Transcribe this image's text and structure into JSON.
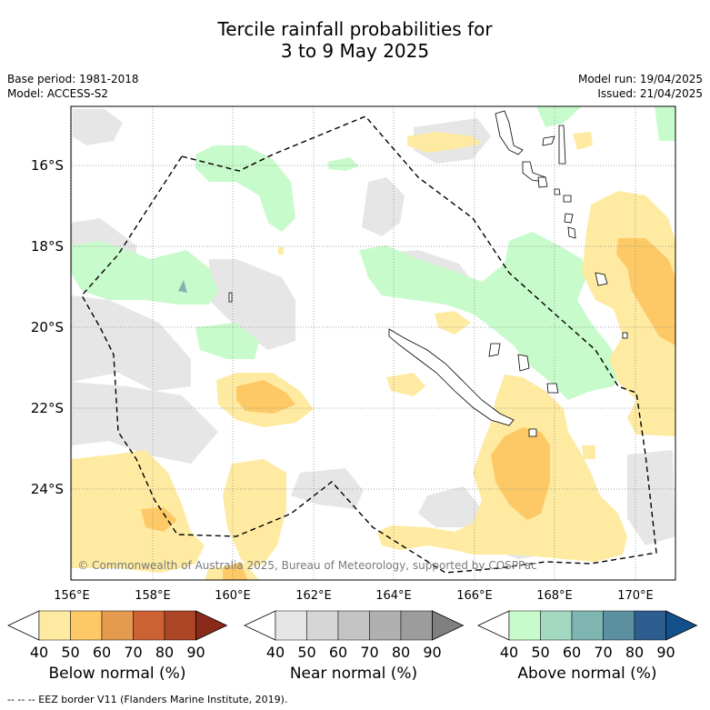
{
  "title_line1": "Tercile rainfall probabilities for",
  "title_line2": "3 to 9 May 2025",
  "base_period": "Base period: 1981-2018",
  "model": "Model: ACCESS-S2",
  "model_run": "Model run: 19/04/2025",
  "issued": "Issued: 21/04/2025",
  "copyright": "© Commonwealth of Australia 2025, Bureau of Meteorology, supported by COSPPac",
  "lat_labels": [
    "16°S",
    "18°S",
    "20°S",
    "22°S",
    "24°S"
  ],
  "lon_labels": [
    "156°E",
    "158°E",
    "160°E",
    "162°E",
    "164°E",
    "166°E",
    "168°E",
    "170°E"
  ],
  "legends": [
    {
      "name": "Below normal (%)",
      "ticks": [
        "40",
        "50",
        "60",
        "70",
        "80",
        "90"
      ],
      "colors": [
        "#ffffff",
        "#feeaa0",
        "#fdc966",
        "#e49a4f",
        "#cc6234",
        "#ad4626",
        "#8b2a1b"
      ]
    },
    {
      "name": "Near normal (%)",
      "ticks": [
        "40",
        "50",
        "60",
        "70",
        "80",
        "90"
      ],
      "colors": [
        "#ffffff",
        "#e6e6e6",
        "#d6d6d6",
        "#c4c4c4",
        "#b0b0b0",
        "#9c9c9c",
        "#808080"
      ]
    },
    {
      "name": "Above normal (%)",
      "ticks": [
        "40",
        "50",
        "60",
        "70",
        "80",
        "90"
      ],
      "colors": [
        "#ffffff",
        "#c7fbcb",
        "#a3d9c1",
        "#7fb5b0",
        "#5a90a0",
        "#2e5e90",
        "#134f88"
      ]
    }
  ],
  "eez_note": "--  --  -- EEZ border V11 (Flanders Marine Institute, 2019)."
}
